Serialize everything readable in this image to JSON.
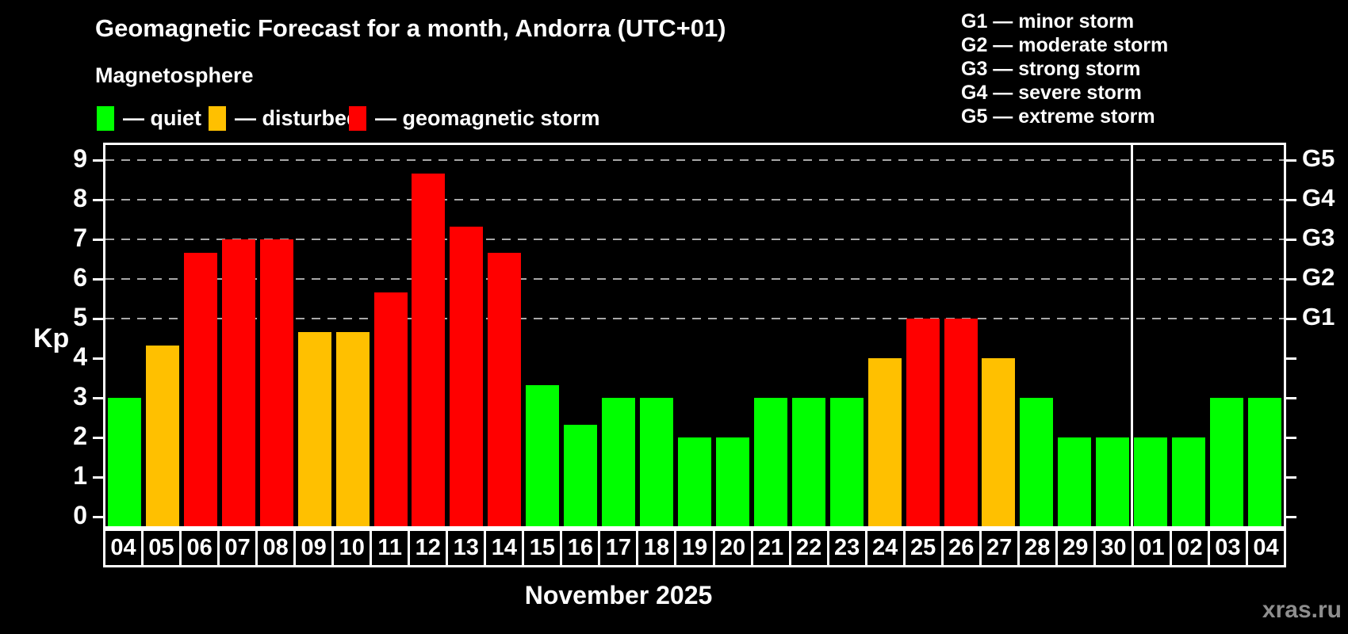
{
  "header": {
    "title": "Geomagnetic Forecast for a month, Andorra (UTC+01)",
    "subtitle": "Magnetosphere"
  },
  "legend": {
    "items": [
      {
        "status": "quiet",
        "label": "— quiet"
      },
      {
        "status": "disturbed",
        "label": "— disturbed"
      },
      {
        "status": "storm",
        "label": "— geomagnetic storm"
      }
    ]
  },
  "g_legend": {
    "items": [
      "G1 — minor storm",
      "G2 — moderate storm",
      "G3 — strong storm",
      "G4 — severe storm",
      "G5 — extreme storm"
    ]
  },
  "colors": {
    "quiet": "#00ff00",
    "disturbed": "#ffc000",
    "storm": "#ff0000",
    "axis": "#ffffff",
    "grid": "#a8a8a8",
    "watermark": "#8e8e8e"
  },
  "chart_data": {
    "type": "bar",
    "title": "Geomagnetic Forecast for a month, Andorra (UTC+01)",
    "ylabel": "Kp",
    "xlabel": "November 2025",
    "ylim": [
      0,
      9
    ],
    "y_ticks": [
      0,
      1,
      2,
      3,
      4,
      5,
      6,
      7,
      8,
      9
    ],
    "grid": "dashed-at-g-levels",
    "legend_position": "top",
    "g_levels": [
      {
        "label": "G1",
        "kp": 5
      },
      {
        "label": "G2",
        "kp": 6
      },
      {
        "label": "G3",
        "kp": 7
      },
      {
        "label": "G4",
        "kp": 8
      },
      {
        "label": "G5",
        "kp": 9
      }
    ],
    "categories": [
      "04",
      "05",
      "06",
      "07",
      "08",
      "09",
      "10",
      "11",
      "12",
      "13",
      "14",
      "15",
      "16",
      "17",
      "18",
      "19",
      "20",
      "21",
      "22",
      "23",
      "24",
      "25",
      "26",
      "27",
      "28",
      "29",
      "30",
      "01",
      "02",
      "03",
      "04"
    ],
    "values": [
      3,
      4.33,
      6.67,
      7,
      7,
      4.67,
      4.67,
      5.67,
      8.67,
      7.33,
      6.67,
      3.33,
      2.33,
      3,
      3,
      2,
      2,
      3,
      3,
      3,
      4,
      5,
      5,
      4,
      3,
      2,
      2,
      2,
      2,
      3,
      3
    ],
    "statuses": [
      "quiet",
      "disturbed",
      "storm",
      "storm",
      "storm",
      "disturbed",
      "disturbed",
      "storm",
      "storm",
      "storm",
      "storm",
      "quiet",
      "quiet",
      "quiet",
      "quiet",
      "quiet",
      "quiet",
      "quiet",
      "quiet",
      "quiet",
      "disturbed",
      "storm",
      "storm",
      "disturbed",
      "quiet",
      "quiet",
      "quiet",
      "quiet",
      "quiet",
      "quiet",
      "quiet"
    ],
    "month_boundary_index": 27
  },
  "footer": {
    "month_label": "November 2025",
    "watermark": "xras.ru"
  },
  "y_axis_label": "Kp"
}
